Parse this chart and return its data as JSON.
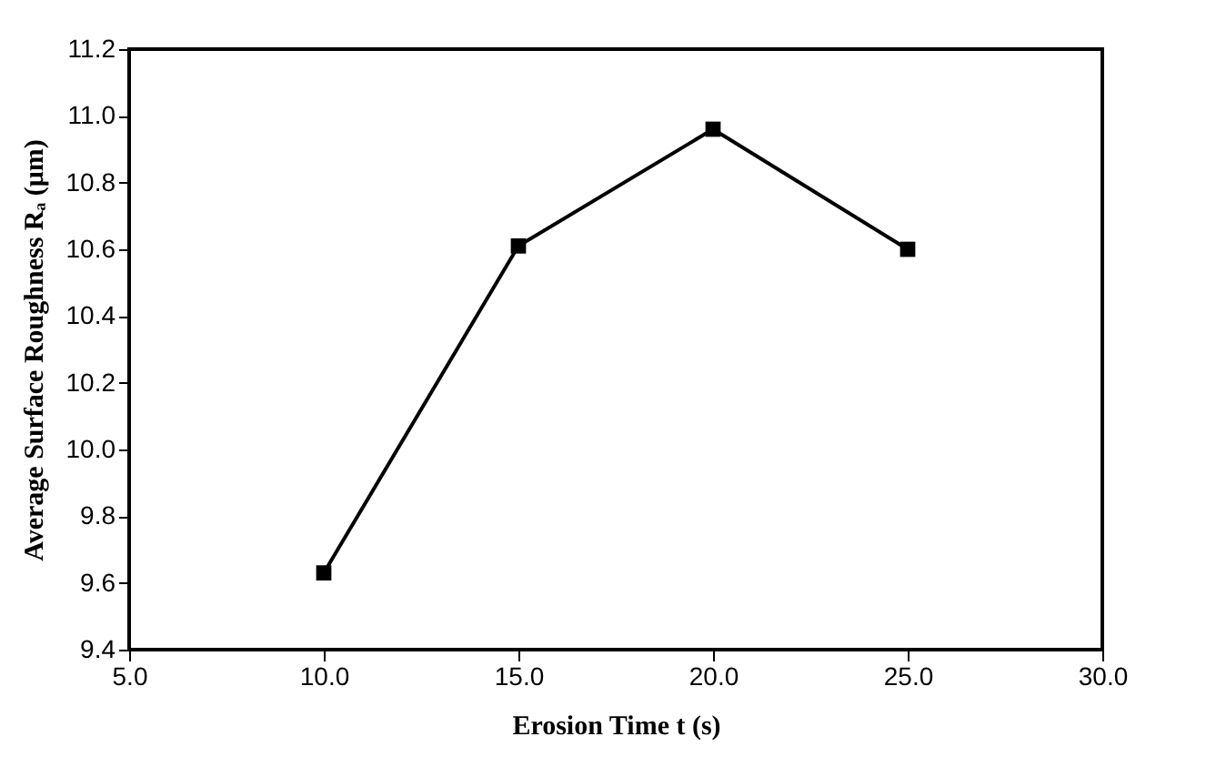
{
  "chart_data": {
    "type": "line",
    "xlabel": "Erosion Time t (s)",
    "ylabel": "Average Surface Roughness Rₐ (μm)",
    "x": [
      10,
      15,
      20,
      25
    ],
    "series": [
      {
        "color": "#000000",
        "values": [
          9.63,
          10.61,
          10.96,
          10.6
        ]
      }
    ],
    "xlim": [
      5,
      30
    ],
    "xticks": [
      {
        "value": 5,
        "label": "5.0"
      },
      {
        "value": 10,
        "label": "10.0"
      },
      {
        "value": 15,
        "label": "15.0"
      },
      {
        "value": 20,
        "label": "20.0"
      },
      {
        "value": 25,
        "label": "25.0"
      },
      {
        "value": 30,
        "label": "30.0"
      }
    ],
    "ylim": [
      9.4,
      11.2
    ],
    "yticks": [
      9.4,
      9.6,
      9.8,
      {
        "value": 10,
        "label": "10.0"
      },
      10.2,
      10.4,
      10.6,
      10.8,
      {
        "value": 11,
        "label": "11.0"
      },
      11.2
    ],
    "grid": false,
    "marker": "square",
    "line_style": "solid"
  }
}
